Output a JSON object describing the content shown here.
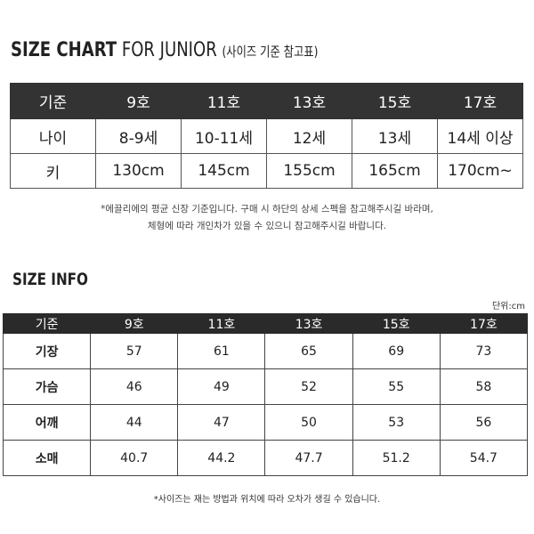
{
  "chart1": {
    "title_bold": "SIZE CHART",
    "title_rest": "FOR JUNIOR",
    "title_sub": "(사이즈 기준 참고표)",
    "header": [
      "기준",
      "9호",
      "11호",
      "13호",
      "15호",
      "17호"
    ],
    "rows": [
      [
        "나이",
        "8-9세",
        "10-11세",
        "12세",
        "13세",
        "14세 이상"
      ],
      [
        "키",
        "130cm",
        "145cm",
        "155cm",
        "165cm",
        "170cm~"
      ]
    ],
    "note_line1": "*에끌리에의 평균 신장 기준입니다. 구매 시 하단의 상세 스펙을 참고해주시길 바라며,",
    "note_line2": "체형에 따라 개인차가 있을 수 있으니 참고해주시길 바랍니다."
  },
  "chart2": {
    "title": "SIZE INFO",
    "unit": "단위:cm",
    "header": [
      "기준",
      "9호",
      "11호",
      "13호",
      "15호",
      "17호"
    ],
    "rows": [
      [
        "기장",
        "57",
        "61",
        "65",
        "69",
        "73"
      ],
      [
        "가슴",
        "46",
        "49",
        "52",
        "55",
        "58"
      ],
      [
        "어깨",
        "44",
        "47",
        "50",
        "53",
        "56"
      ],
      [
        "소매",
        "40.7",
        "44.2",
        "47.7",
        "51.2",
        "54.7"
      ]
    ],
    "note": "*사이즈는 재는 방법과 위치에 따라 오차가 생길 수 있습니다."
  },
  "colors": {
    "header_bg": "#333333",
    "header_text": "#ffffff"
  }
}
